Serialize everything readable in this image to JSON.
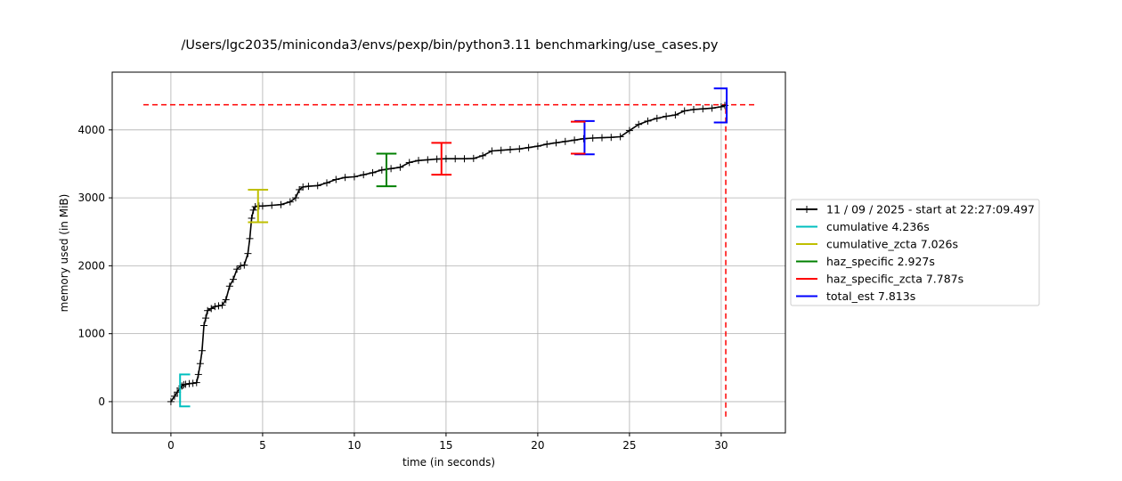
{
  "chart_data": {
    "type": "line",
    "title": "/Users/lgc2035/miniconda3/envs/pexp/bin/python3.11 benchmarking/use_cases.py",
    "xlabel": "time (in seconds)",
    "ylabel": "memory used (in MiB)",
    "xlim": [
      -3.2,
      33.5
    ],
    "ylim": [
      -460,
      4850
    ],
    "xticks": [
      0,
      5,
      10,
      15,
      20,
      25,
      30
    ],
    "yticks": [
      0,
      1000,
      2000,
      3000,
      4000
    ],
    "grid": true,
    "legend_position": "right, outside plot",
    "series": [
      {
        "name": "11 / 09 / 2025 - start at 22:27:09.497",
        "color": "#000000",
        "marker": "plus",
        "x": [
          0,
          0.2,
          0.35,
          0.5,
          0.6,
          0.7,
          0.8,
          1.0,
          1.2,
          1.4,
          1.5,
          1.6,
          1.7,
          1.8,
          1.9,
          2.0,
          2.2,
          2.4,
          2.6,
          2.8,
          3.0,
          3.2,
          3.4,
          3.6,
          3.8,
          4.0,
          4.2,
          4.3,
          4.4,
          4.5,
          4.6,
          4.8,
          5.0,
          5.5,
          6.0,
          6.5,
          6.8,
          7.0,
          7.2,
          7.5,
          8.0,
          8.5,
          9.0,
          9.5,
          10.0,
          10.5,
          11.0,
          11.5,
          12.0,
          12.5,
          13.0,
          13.5,
          14.0,
          14.5,
          15.0,
          15.5,
          16.0,
          16.5,
          17.0,
          17.5,
          18.0,
          18.5,
          19.0,
          19.5,
          20.0,
          20.5,
          21.0,
          21.5,
          22.0,
          22.5,
          23.0,
          23.5,
          24.0,
          24.5,
          25.0,
          25.5,
          26.0,
          26.5,
          27.0,
          27.5,
          28.0,
          28.5,
          29.0,
          29.5,
          30.0,
          30.2
        ],
        "y": [
          0,
          80,
          140,
          200,
          230,
          250,
          255,
          265,
          270,
          280,
          400,
          560,
          750,
          1120,
          1230,
          1340,
          1370,
          1400,
          1410,
          1420,
          1500,
          1700,
          1800,
          1950,
          2000,
          2010,
          2180,
          2400,
          2700,
          2820,
          2870,
          2880,
          2880,
          2890,
          2900,
          2940,
          3000,
          3120,
          3160,
          3170,
          3180,
          3220,
          3270,
          3300,
          3310,
          3340,
          3370,
          3410,
          3430,
          3450,
          3520,
          3550,
          3560,
          3570,
          3575,
          3575,
          3575,
          3580,
          3620,
          3690,
          3700,
          3710,
          3720,
          3740,
          3760,
          3790,
          3810,
          3830,
          3850,
          3870,
          3880,
          3885,
          3890,
          3900,
          3990,
          4080,
          4130,
          4170,
          4200,
          4220,
          4280,
          4300,
          4310,
          4320,
          4340,
          4360
        ]
      },
      {
        "name": "cumulative 4.236s",
        "color": "#00bfbf",
        "kind": "bracket",
        "start": 0.5,
        "end": 1.05,
        "low": -70,
        "high": 400
      },
      {
        "name": "cumulative_zcta 7.026s",
        "color": "#bfbf00",
        "kind": "bracket",
        "start": 4.2,
        "end": 5.3,
        "low": 2640,
        "high": 3120
      },
      {
        "name": "haz_specific 2.927s",
        "color": "#008000",
        "kind": "bracket",
        "start": 11.2,
        "end": 12.3,
        "low": 3170,
        "high": 3650
      },
      {
        "name": "haz_specific_zcta 7.787s",
        "color": "#ff0000",
        "kind": "bracket",
        "start": 14.2,
        "end": 15.3,
        "low": 3340,
        "high": 3810
      },
      {
        "name": "total_est 7.813s",
        "color": "#0000ff",
        "kind": "bracket",
        "start": 22.0,
        "end": 23.1,
        "low": 3640,
        "high": 4130,
        "second_start": 29.6,
        "second_end": 30.3,
        "second_low": 4110,
        "second_high": 4610
      }
    ],
    "red_bracket_2": {
      "start": 21.8,
      "end": 22.6,
      "low": 3650,
      "high": 4120
    },
    "max_memory_line": {
      "y": 4370,
      "x_from": -1.5,
      "x_to": 31.9,
      "color": "#ff0000",
      "style": "dashed"
    },
    "end_time_line": {
      "x": 30.25,
      "y_from": -220,
      "y_to": 4370,
      "color": "#ff0000",
      "style": "dashed"
    }
  }
}
